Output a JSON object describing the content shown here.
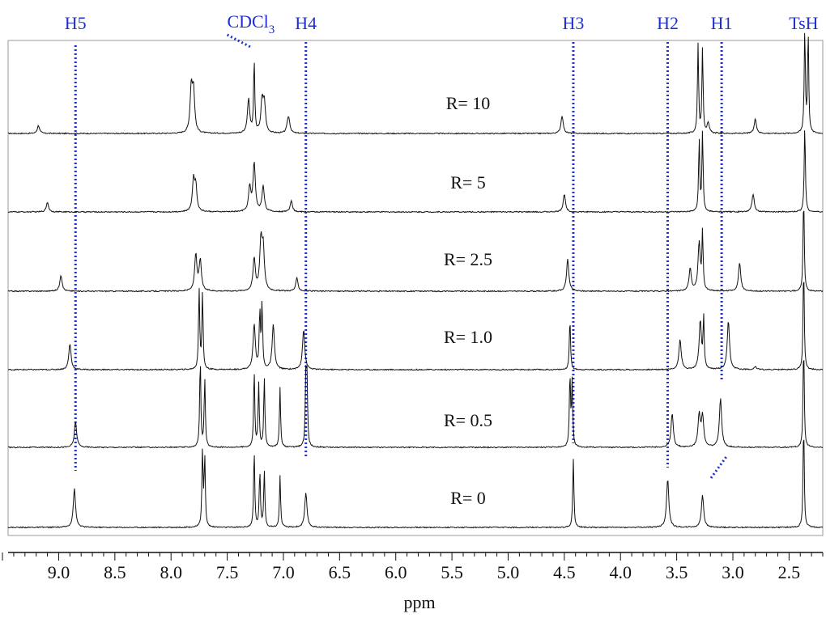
{
  "chart_data": {
    "type": "line",
    "xlabel": "ppm",
    "xlim": [
      9.45,
      2.2
    ],
    "xaxis_reversed": true,
    "xticks": [
      "9.0",
      "8.5",
      "8.0",
      "7.5",
      "7.0",
      "6.5",
      "6.0",
      "5.5",
      "5.0",
      "4.5",
      "4.0",
      "3.5",
      "3.0",
      "2.5"
    ],
    "tick_values": [
      9.0,
      8.5,
      8.0,
      7.5,
      7.0,
      6.5,
      6.0,
      5.5,
      5.0,
      4.5,
      4.0,
      3.5,
      3.0,
      2.5
    ],
    "grid": false,
    "colors": {
      "assignment_lines": "#1f2fd0",
      "spectra": "#111111",
      "frame": "#999999"
    },
    "peak_labels": [
      {
        "text": "H5",
        "ppm": 8.85
      },
      {
        "text": "H4",
        "ppm": 6.8
      },
      {
        "text": "H3",
        "ppm": 4.42
      },
      {
        "text": "H2",
        "ppm": 3.58
      },
      {
        "text": "H1",
        "ppm": 3.1
      },
      {
        "text": "TsH",
        "ppm": 2.37
      }
    ],
    "solvent_label": {
      "text": "CDCl",
      "sub": "3",
      "ppm": 7.26
    },
    "series": [
      {
        "name": "R= 10",
        "peaks": [
          [
            9.18,
            10
          ],
          [
            7.82,
            55
          ],
          [
            7.8,
            50
          ],
          [
            7.31,
            42
          ],
          [
            7.26,
            90
          ],
          [
            7.19,
            38
          ],
          [
            7.17,
            36
          ],
          [
            6.96,
            12
          ],
          [
            6.95,
            12
          ],
          [
            4.52,
            22
          ],
          [
            3.31,
            110
          ],
          [
            3.27,
            105
          ],
          [
            3.22,
            12
          ],
          [
            2.8,
            18
          ],
          [
            2.36,
            130
          ],
          [
            2.33,
            125
          ]
        ]
      },
      {
        "name": "R= 5",
        "peaks": [
          [
            9.1,
            12
          ],
          [
            7.8,
            38
          ],
          [
            7.78,
            30
          ],
          [
            7.3,
            30
          ],
          [
            7.26,
            60
          ],
          [
            7.18,
            32
          ],
          [
            6.93,
            14
          ],
          [
            4.5,
            22
          ],
          [
            3.3,
            90
          ],
          [
            3.27,
            98
          ],
          [
            2.82,
            22
          ],
          [
            2.36,
            110
          ]
        ]
      },
      {
        "name": "R= 2.5",
        "peaks": [
          [
            8.98,
            20
          ],
          [
            7.78,
            45
          ],
          [
            7.74,
            38
          ],
          [
            7.26,
            40
          ],
          [
            7.2,
            60
          ],
          [
            7.18,
            50
          ],
          [
            6.88,
            16
          ],
          [
            4.47,
            40
          ],
          [
            3.38,
            28
          ],
          [
            3.3,
            60
          ],
          [
            3.27,
            70
          ],
          [
            2.94,
            35
          ],
          [
            2.37,
            120
          ]
        ]
      },
      {
        "name": "R= 1.0",
        "peaks": [
          [
            8.9,
            32
          ],
          [
            7.75,
            100
          ],
          [
            7.72,
            95
          ],
          [
            7.26,
            55
          ],
          [
            7.21,
            70
          ],
          [
            7.19,
            80
          ],
          [
            7.09,
            55
          ],
          [
            6.82,
            50
          ],
          [
            4.45,
            65
          ],
          [
            3.47,
            38
          ],
          [
            3.29,
            60
          ],
          [
            3.26,
            62
          ],
          [
            3.04,
            60
          ],
          [
            2.8,
            4
          ],
          [
            2.37,
            130
          ]
        ]
      },
      {
        "name": "R= 0.5",
        "peaks": [
          [
            8.85,
            32
          ],
          [
            7.74,
            110
          ],
          [
            7.7,
            85
          ],
          [
            7.26,
            95
          ],
          [
            7.22,
            80
          ],
          [
            7.17,
            85
          ],
          [
            7.03,
            75
          ],
          [
            6.8,
            85
          ],
          [
            6.79,
            80
          ],
          [
            4.45,
            90
          ],
          [
            4.43,
            80
          ],
          [
            3.54,
            42
          ],
          [
            3.3,
            40
          ],
          [
            3.27,
            38
          ],
          [
            3.11,
            60
          ],
          [
            2.37,
            130
          ]
        ]
      },
      {
        "name": "R= 0",
        "peaks": [
          [
            8.86,
            48
          ],
          [
            7.72,
            95
          ],
          [
            7.7,
            85
          ],
          [
            7.26,
            95
          ],
          [
            7.21,
            70
          ],
          [
            7.17,
            70
          ],
          [
            7.03,
            65
          ],
          [
            6.8,
            42
          ],
          [
            4.42,
            85
          ],
          [
            3.58,
            60
          ],
          [
            3.27,
            40
          ],
          [
            2.37,
            130
          ]
        ]
      }
    ]
  }
}
